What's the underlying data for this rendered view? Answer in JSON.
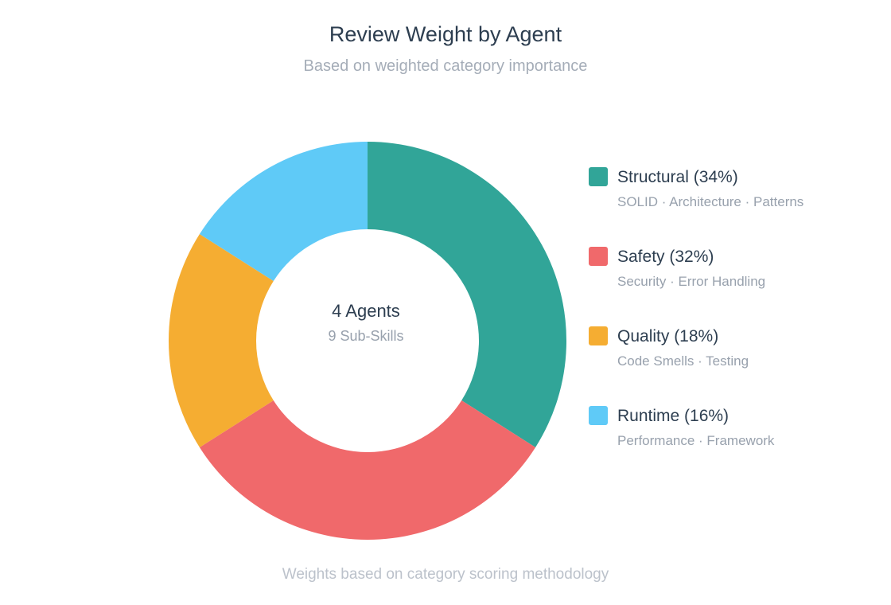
{
  "header": {
    "title": "Review Weight by Agent",
    "subtitle": "Based on weighted category importance"
  },
  "center": {
    "main": "4 Agents",
    "sub": "9 Sub-Skills"
  },
  "legend": [
    {
      "label": "Structural (34%)",
      "desc": "SOLID · Architecture · Patterns",
      "color": "#31a598"
    },
    {
      "label": "Safety (32%)",
      "desc": "Security · Error Handling",
      "color": "#f0696b"
    },
    {
      "label": "Quality (18%)",
      "desc": "Code Smells · Testing",
      "color": "#f5ad32"
    },
    {
      "label": "Runtime (16%)",
      "desc": "Performance · Framework",
      "color": "#5fcaf7"
    }
  ],
  "footer": "Weights based on category scoring methodology",
  "chart_data": {
    "type": "pie",
    "variant": "donut",
    "title": "Review Weight by Agent",
    "subtitle": "Based on weighted category importance",
    "categories": [
      "Structural",
      "Safety",
      "Quality",
      "Runtime"
    ],
    "values": [
      34,
      32,
      18,
      16
    ],
    "unit": "%",
    "colors": [
      "#31a598",
      "#f0696b",
      "#f5ad32",
      "#5fcaf7"
    ],
    "descriptions": [
      "SOLID · Architecture · Patterns",
      "Security · Error Handling",
      "Code Smells · Testing",
      "Performance · Framework"
    ],
    "center_text": [
      "4 Agents",
      "9 Sub-Skills"
    ],
    "legend_position": "right",
    "start_angle": "12 o'clock, clockwise",
    "footnote": "Weights based on category scoring methodology"
  }
}
